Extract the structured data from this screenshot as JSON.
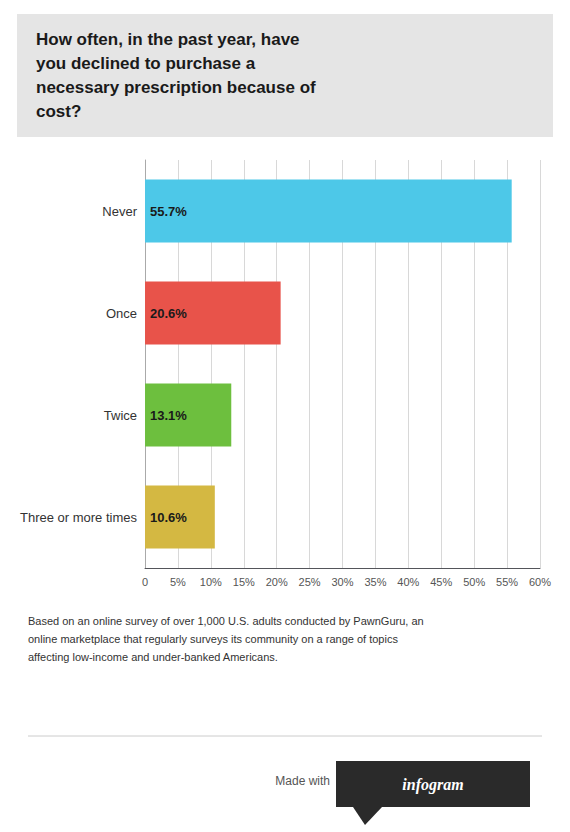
{
  "chart_data": {
    "type": "bar",
    "orientation": "horizontal",
    "title": "How often, in the past year, have\nyou declined to purchase a\nnecessary prescription because of\ncost?",
    "categories": [
      "Never",
      "Once",
      "Twice",
      "Three or more times"
    ],
    "values": [
      55.7,
      20.6,
      13.1,
      10.6
    ],
    "value_labels": [
      "55.7%",
      "20.6%",
      "13.1%",
      "10.6%"
    ],
    "data_labels": true,
    "colors": [
      "#4DC8E8",
      "#E8534A",
      "#6DBF3E",
      "#D4B842"
    ],
    "xlim": [
      0,
      60
    ],
    "xticks": [
      0,
      {
        "value": 5,
        "label": "5%"
      },
      {
        "value": 10,
        "label": "10%"
      },
      {
        "value": 15,
        "label": "15%"
      },
      {
        "value": 20,
        "label": "20%"
      },
      {
        "value": 25,
        "label": "25%"
      },
      {
        "value": 30,
        "label": "30%"
      },
      {
        "value": 35,
        "label": "35%"
      },
      {
        "value": 40,
        "label": "40%"
      },
      {
        "value": 45,
        "label": "45%"
      },
      {
        "value": 50,
        "label": "50%"
      },
      {
        "value": 55,
        "label": "55%"
      },
      {
        "value": 60,
        "label": "60%"
      }
    ],
    "grid": true,
    "annotations": [
      "Based on an online survey of over 1,000 U.S. adults conducted by PawnGuru, an\nonline marketplace that regularly surveys its community on a range of topics\naffecting low-income and under-banked Americans.",
      "Made with",
      "infogram"
    ]
  }
}
